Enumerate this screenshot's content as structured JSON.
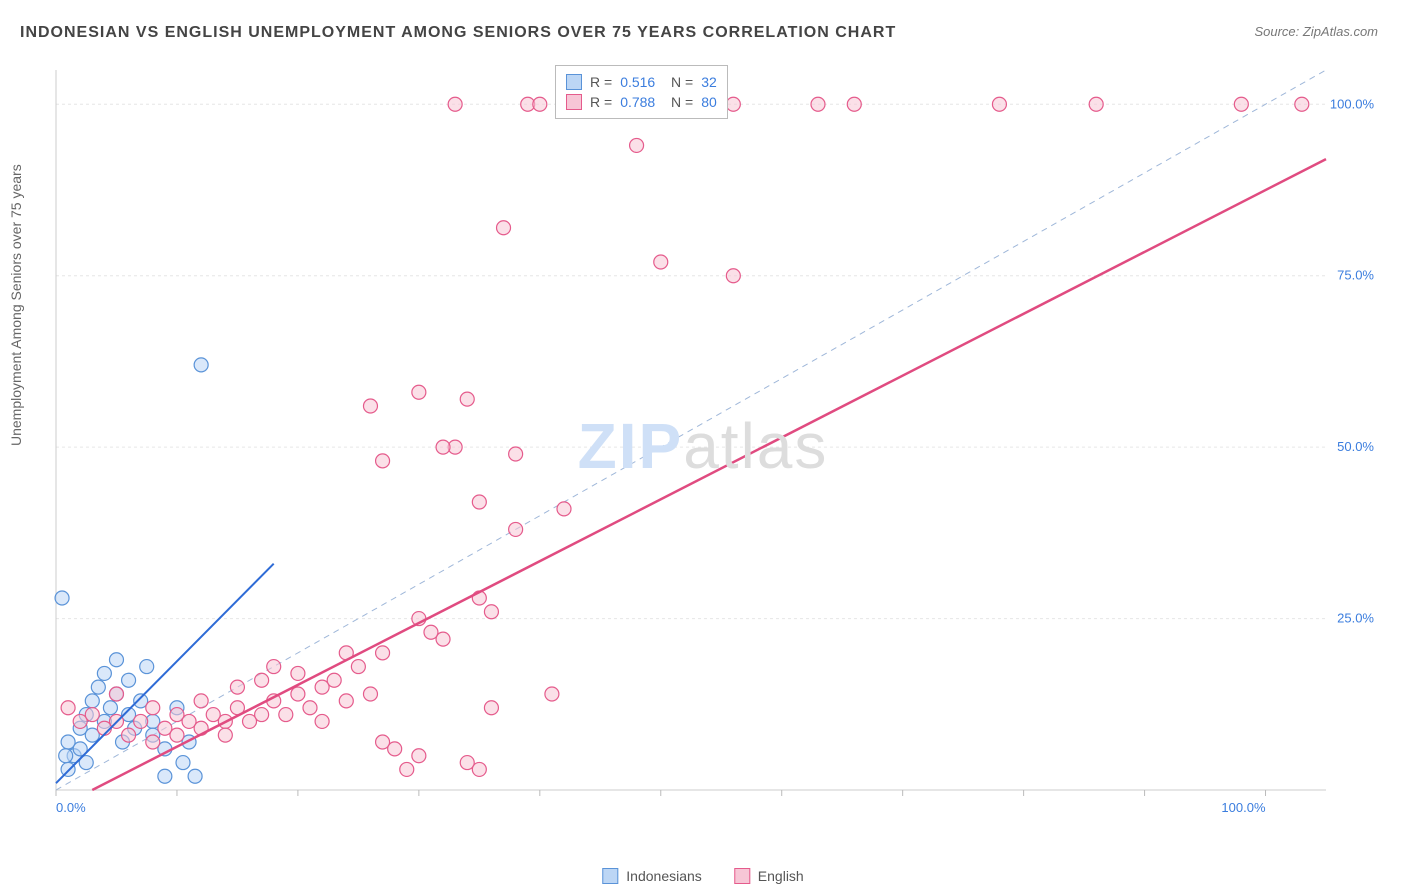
{
  "title": "INDONESIAN VS ENGLISH UNEMPLOYMENT AMONG SENIORS OVER 75 YEARS CORRELATION CHART",
  "source": "Source: ZipAtlas.com",
  "ylabel": "Unemployment Among Seniors over 75 years",
  "watermark": {
    "part1": "ZIP",
    "part2": "atlas"
  },
  "chart": {
    "type": "scatter",
    "xlim": [
      0,
      105
    ],
    "ylim": [
      0,
      105
    ],
    "x_axis_labels": [
      {
        "v": 0,
        "text": "0.0%"
      },
      {
        "v": 100,
        "text": "100.0%"
      }
    ],
    "y_axis_labels": [
      {
        "v": 25,
        "text": "25.0%"
      },
      {
        "v": 50,
        "text": "50.0%"
      },
      {
        "v": 75,
        "text": "75.0%"
      },
      {
        "v": 100,
        "text": "100.0%"
      }
    ],
    "x_ticks": [
      0,
      10,
      20,
      30,
      40,
      50,
      60,
      70,
      80,
      90,
      100
    ],
    "grid_y": [
      25,
      50,
      75,
      100
    ],
    "grid_color": "#e6e6e6",
    "axis_color": "#cccccc",
    "tick_color": "#bbbbbb",
    "background_color": "#ffffff",
    "marker_radius": 7,
    "marker_stroke_width": 1.2,
    "identity_line": {
      "color": "#9fb7d9",
      "dash": "6,5",
      "width": 1,
      "x1": 0,
      "y1": 0,
      "x2": 105,
      "y2": 105
    },
    "series": [
      {
        "name": "Indonesians",
        "color_fill": "#bcd6f5",
        "color_stroke": "#5a93d8",
        "color_fill_opacity": 0.55,
        "R": "0.516",
        "N": "32",
        "regression": {
          "x1": 0,
          "y1": 1,
          "x2": 18,
          "y2": 33,
          "color": "#2e6bd6",
          "width": 2
        },
        "points": [
          [
            0.5,
            28
          ],
          [
            1,
            7
          ],
          [
            1.5,
            5
          ],
          [
            2,
            6
          ],
          [
            2,
            9
          ],
          [
            2.5,
            11
          ],
          [
            3,
            8
          ],
          [
            3,
            13
          ],
          [
            3.5,
            15
          ],
          [
            4,
            10
          ],
          [
            4,
            17
          ],
          [
            4.5,
            12
          ],
          [
            5,
            14
          ],
          [
            5,
            19
          ],
          [
            5.5,
            7
          ],
          [
            6,
            11
          ],
          [
            6,
            16
          ],
          [
            6.5,
            9
          ],
          [
            7,
            13
          ],
          [
            7.5,
            18
          ],
          [
            8,
            10
          ],
          [
            8,
            8
          ],
          [
            9,
            6
          ],
          [
            9,
            2
          ],
          [
            10,
            12
          ],
          [
            10.5,
            4
          ],
          [
            11,
            7
          ],
          [
            11.5,
            2
          ],
          [
            12,
            62
          ],
          [
            2.5,
            4
          ],
          [
            1,
            3
          ],
          [
            0.8,
            5
          ]
        ]
      },
      {
        "name": "English",
        "color_fill": "#f7c6d6",
        "color_stroke": "#e55b8c",
        "color_fill_opacity": 0.55,
        "R": "0.788",
        "N": "80",
        "regression": {
          "x1": 3,
          "y1": 0,
          "x2": 105,
          "y2": 92,
          "color": "#e04b80",
          "width": 2.5
        },
        "points": [
          [
            1,
            12
          ],
          [
            2,
            10
          ],
          [
            3,
            11
          ],
          [
            4,
            9
          ],
          [
            5,
            10
          ],
          [
            5,
            14
          ],
          [
            6,
            8
          ],
          [
            7,
            10
          ],
          [
            8,
            12
          ],
          [
            8,
            7
          ],
          [
            9,
            9
          ],
          [
            10,
            11
          ],
          [
            10,
            8
          ],
          [
            11,
            10
          ],
          [
            12,
            9
          ],
          [
            12,
            13
          ],
          [
            13,
            11
          ],
          [
            14,
            10
          ],
          [
            14,
            8
          ],
          [
            15,
            12
          ],
          [
            15,
            15
          ],
          [
            16,
            10
          ],
          [
            17,
            11
          ],
          [
            17,
            16
          ],
          [
            18,
            13
          ],
          [
            18,
            18
          ],
          [
            19,
            11
          ],
          [
            20,
            14
          ],
          [
            20,
            17
          ],
          [
            21,
            12
          ],
          [
            22,
            15
          ],
          [
            22,
            10
          ],
          [
            23,
            16
          ],
          [
            24,
            13
          ],
          [
            24,
            20
          ],
          [
            25,
            18
          ],
          [
            26,
            14
          ],
          [
            27,
            20
          ],
          [
            27,
            7
          ],
          [
            28,
            6
          ],
          [
            29,
            3
          ],
          [
            30,
            25
          ],
          [
            30,
            5
          ],
          [
            31,
            23
          ],
          [
            32,
            22
          ],
          [
            33,
            50
          ],
          [
            34,
            4
          ],
          [
            35,
            28
          ],
          [
            35,
            3
          ],
          [
            36,
            26
          ],
          [
            37,
            82
          ],
          [
            38,
            38
          ],
          [
            41,
            14
          ],
          [
            26,
            56
          ],
          [
            30,
            58
          ],
          [
            32,
            50
          ],
          [
            33,
            100
          ],
          [
            35,
            42
          ],
          [
            36,
            12
          ],
          [
            38,
            49
          ],
          [
            39,
            100
          ],
          [
            40,
            100
          ],
          [
            42,
            41
          ],
          [
            44,
            100
          ],
          [
            46,
            100
          ],
          [
            48,
            100
          ],
          [
            48,
            94
          ],
          [
            50,
            77
          ],
          [
            51,
            100
          ],
          [
            52,
            100
          ],
          [
            56,
            100
          ],
          [
            56,
            75
          ],
          [
            63,
            100
          ],
          [
            66,
            100
          ],
          [
            78,
            100
          ],
          [
            86,
            100
          ],
          [
            98,
            100
          ],
          [
            103,
            100
          ],
          [
            34,
            57
          ],
          [
            27,
            48
          ]
        ]
      }
    ]
  },
  "legend_bottom": [
    {
      "label": "Indonesians",
      "fill": "#bcd6f5",
      "stroke": "#5a93d8"
    },
    {
      "label": "English",
      "fill": "#f7c6d6",
      "stroke": "#e55b8c"
    }
  ]
}
